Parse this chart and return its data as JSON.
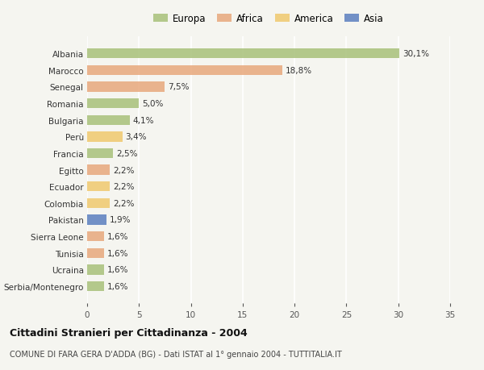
{
  "countries": [
    "Albania",
    "Marocco",
    "Senegal",
    "Romania",
    "Bulgaria",
    "Perù",
    "Francia",
    "Egitto",
    "Ecuador",
    "Colombia",
    "Pakistan",
    "Sierra Leone",
    "Tunisia",
    "Ucraina",
    "Serbia/Montenegro"
  ],
  "values": [
    30.1,
    18.8,
    7.5,
    5.0,
    4.1,
    3.4,
    2.5,
    2.2,
    2.2,
    2.2,
    1.9,
    1.6,
    1.6,
    1.6,
    1.6
  ],
  "labels": [
    "30,1%",
    "18,8%",
    "7,5%",
    "5,0%",
    "4,1%",
    "3,4%",
    "2,5%",
    "2,2%",
    "2,2%",
    "2,2%",
    "1,9%",
    "1,6%",
    "1,6%",
    "1,6%",
    "1,6%"
  ],
  "continents": [
    "Europa",
    "Africa",
    "Africa",
    "Europa",
    "Europa",
    "America",
    "Europa",
    "Africa",
    "America",
    "America",
    "Asia",
    "Africa",
    "Africa",
    "Europa",
    "Europa"
  ],
  "colors": {
    "Europa": "#a8c07a",
    "Africa": "#e8a87c",
    "America": "#f0c96e",
    "Asia": "#5b7fbf"
  },
  "legend_order": [
    "Europa",
    "Africa",
    "America",
    "Asia"
  ],
  "background_color": "#f5f5f0",
  "title": "Cittadini Stranieri per Cittadinanza - 2004",
  "subtitle": "COMUNE DI FARA GERA D'ADDA (BG) - Dati ISTAT al 1° gennaio 2004 - TUTTITALIA.IT",
  "xlim": [
    0,
    35
  ],
  "xticks": [
    0,
    5,
    10,
    15,
    20,
    25,
    30,
    35
  ]
}
